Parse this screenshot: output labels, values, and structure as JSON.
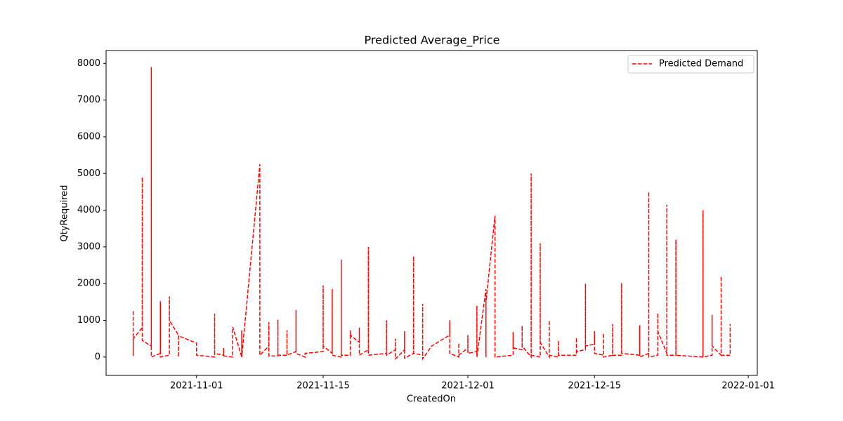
{
  "chart_data": {
    "type": "line",
    "title": "Predicted Average_Price",
    "xlabel": "CreatedOn",
    "ylabel": "QtyRequired",
    "x": [
      "2021-10-25",
      "2021-10-25",
      "2021-10-25",
      "2021-10-26",
      "2021-10-26",
      "2021-10-26",
      "2021-10-27",
      "2021-10-27",
      "2021-10-27",
      "2021-10-28",
      "2021-10-28",
      "2021-10-28",
      "2021-10-29",
      "2021-10-29",
      "2021-10-29",
      "2021-10-30",
      "2021-10-30",
      "2021-10-30",
      "2021-11-01",
      "2021-11-01",
      "2021-11-03",
      "2021-11-03",
      "2021-11-03",
      "2021-11-04",
      "2021-11-04",
      "2021-11-04",
      "2021-11-05",
      "2021-11-05",
      "2021-11-06",
      "2021-11-06",
      "2021-11-06",
      "2021-11-08",
      "2021-11-08",
      "2021-11-09",
      "2021-11-09",
      "2021-11-09",
      "2021-11-10",
      "2021-11-10",
      "2021-11-10",
      "2021-11-11",
      "2021-11-11",
      "2021-11-11",
      "2021-11-12",
      "2021-11-12",
      "2021-11-12",
      "2021-11-13",
      "2021-11-13",
      "2021-11-15",
      "2021-11-15",
      "2021-11-15",
      "2021-11-16",
      "2021-11-16",
      "2021-11-16",
      "2021-11-17",
      "2021-11-17",
      "2021-11-17",
      "2021-11-18",
      "2021-11-18",
      "2021-11-18",
      "2021-11-19",
      "2021-11-19",
      "2021-11-19",
      "2021-11-20",
      "2021-11-20",
      "2021-11-20",
      "2021-11-22",
      "2021-11-22",
      "2021-11-22",
      "2021-11-23",
      "2021-11-23",
      "2021-11-23",
      "2021-11-24",
      "2021-11-24",
      "2021-11-24",
      "2021-11-25",
      "2021-11-25",
      "2021-11-25",
      "2021-11-26",
      "2021-11-26",
      "2021-11-26",
      "2021-11-27",
      "2021-11-29",
      "2021-11-29",
      "2021-11-29",
      "2021-11-30",
      "2021-11-30",
      "2021-11-30",
      "2021-12-01",
      "2021-12-01",
      "2021-12-01",
      "2021-12-02",
      "2021-12-02",
      "2021-12-02",
      "2021-12-03",
      "2021-12-03",
      "2021-12-03",
      "2021-12-04",
      "2021-12-04",
      "2021-12-06",
      "2021-12-06",
      "2021-12-06",
      "2021-12-07",
      "2021-12-07",
      "2021-12-07",
      "2021-12-08",
      "2021-12-08",
      "2021-12-08",
      "2021-12-09",
      "2021-12-09",
      "2021-12-09",
      "2021-12-10",
      "2021-12-10",
      "2021-12-10",
      "2021-12-11",
      "2021-12-11",
      "2021-12-11",
      "2021-12-13",
      "2021-12-13",
      "2021-12-13",
      "2021-12-14",
      "2021-12-14",
      "2021-12-14",
      "2021-12-15",
      "2021-12-15",
      "2021-12-15",
      "2021-12-16",
      "2021-12-16",
      "2021-12-16",
      "2021-12-17",
      "2021-12-17",
      "2021-12-17",
      "2021-12-18",
      "2021-12-18",
      "2021-12-18",
      "2021-12-20",
      "2021-12-20",
      "2021-12-20",
      "2021-12-21",
      "2021-12-21",
      "2021-12-21",
      "2021-12-22",
      "2021-12-22",
      "2021-12-22",
      "2021-12-23",
      "2021-12-23",
      "2021-12-23",
      "2021-12-24",
      "2021-12-24",
      "2021-12-24",
      "2021-12-27",
      "2021-12-27",
      "2021-12-27",
      "2021-12-28",
      "2021-12-28",
      "2021-12-28",
      "2021-12-29",
      "2021-12-29",
      "2021-12-29",
      "2021-12-30",
      "2021-12-30",
      "2021-12-30"
    ],
    "series": [
      {
        "name": "Predicted Demand",
        "color": "#ff0000",
        "values": [
          1250,
          30,
          500,
          800,
          4900,
          450,
          300,
          7900,
          0,
          100,
          1520,
          0,
          50,
          1650,
          1000,
          600,
          0,
          580,
          380,
          50,
          0,
          1180,
          100,
          50,
          250,
          30,
          0,
          820,
          0,
          730,
          0,
          5250,
          50,
          300,
          950,
          30,
          30,
          1020,
          50,
          50,
          730,
          50,
          150,
          1280,
          100,
          0,
          100,
          150,
          1950,
          300,
          100,
          1850,
          50,
          0,
          2650,
          50,
          50,
          720,
          600,
          400,
          800,
          50,
          200,
          3000,
          50,
          100,
          1000,
          50,
          200,
          500,
          -50,
          200,
          700,
          -30,
          100,
          2750,
          100,
          50,
          1450,
          -50,
          300,
          600,
          1000,
          100,
          0,
          380,
          50,
          250,
          600,
          100,
          150,
          1400,
          0,
          1850,
          0,
          1500,
          3850,
          0,
          50,
          680,
          250,
          200,
          850,
          300,
          0,
          5000,
          50,
          0,
          3100,
          400,
          0,
          1000,
          50,
          0,
          450,
          50,
          50,
          530,
          150,
          200,
          2000,
          300,
          350,
          700,
          100,
          50,
          650,
          0,
          50,
          900,
          50,
          50,
          2020,
          100,
          50,
          870,
          0,
          100,
          4500,
          0,
          50,
          1200,
          700,
          100,
          4150,
          50,
          50,
          3200,
          50,
          0,
          4000,
          0,
          50,
          1150,
          300,
          50,
          2200,
          50,
          50,
          900,
          50
        ]
      }
    ],
    "xlim": [
      "2021-10-22",
      "2022-01-02"
    ],
    "xticks": [
      "2021-11-01",
      "2021-11-15",
      "2021-12-01",
      "2021-12-15",
      "2022-01-01"
    ],
    "ylim": [
      -500,
      8350
    ],
    "yticks": [
      0,
      1000,
      2000,
      3000,
      4000,
      5000,
      6000,
      7000,
      8000
    ],
    "legend": "upper right"
  }
}
